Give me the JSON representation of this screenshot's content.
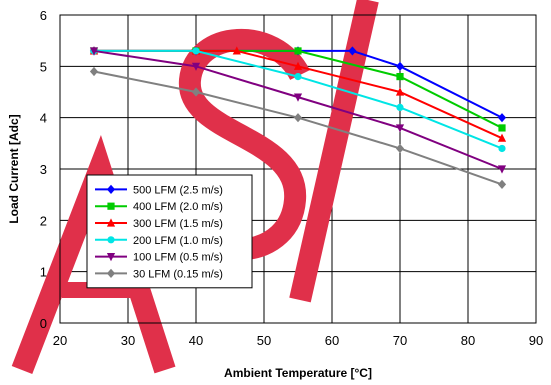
{
  "chart_data": {
    "type": "line",
    "xlabel": "Ambient Temperature [°C]",
    "ylabel": "Load Current  [Adc]",
    "xlim": [
      20,
      90
    ],
    "ylim": [
      0,
      6
    ],
    "xticks": [
      20,
      30,
      40,
      50,
      60,
      70,
      80,
      90
    ],
    "yticks": [
      0,
      1,
      2,
      3,
      4,
      5,
      6
    ],
    "grid": true,
    "legend_position": "bottom-left",
    "watermark": "ASI",
    "watermark_color": "#e0304a",
    "series": [
      {
        "name": "500 LFM (2.5 m/s)",
        "color": "#0000ff",
        "marker": "diamond",
        "points": [
          [
            25,
            5.3
          ],
          [
            40,
            5.3
          ],
          [
            55,
            5.3
          ],
          [
            63,
            5.3
          ],
          [
            70,
            5.0
          ],
          [
            85,
            4.0
          ]
        ]
      },
      {
        "name": "400 LFM (2.0 m/s)",
        "color": "#00cc00",
        "marker": "square",
        "points": [
          [
            25,
            5.3
          ],
          [
            40,
            5.3
          ],
          [
            55,
            5.3
          ],
          [
            70,
            4.8
          ],
          [
            85,
            3.8
          ]
        ]
      },
      {
        "name": "300 LFM (1.5 m/s)",
        "color": "#ff0000",
        "marker": "triangle-up",
        "points": [
          [
            25,
            5.3
          ],
          [
            40,
            5.3
          ],
          [
            46,
            5.3
          ],
          [
            55,
            5.0
          ],
          [
            70,
            4.5
          ],
          [
            85,
            3.6
          ]
        ]
      },
      {
        "name": "200 LFM (1.0 m/s)",
        "color": "#00e5e5",
        "marker": "circle",
        "points": [
          [
            25,
            5.3
          ],
          [
            40,
            5.3
          ],
          [
            55,
            4.8
          ],
          [
            70,
            4.2
          ],
          [
            85,
            3.4
          ]
        ]
      },
      {
        "name": "100 LFM (0.5 m/s)",
        "color": "#800080",
        "marker": "triangle-down",
        "points": [
          [
            25,
            5.3
          ],
          [
            40,
            5.0
          ],
          [
            55,
            4.4
          ],
          [
            70,
            3.8
          ],
          [
            85,
            3.0
          ]
        ]
      },
      {
        "name": "30 LFM (0.15 m/s)",
        "color": "#808080",
        "marker": "diamond",
        "points": [
          [
            25,
            4.9
          ],
          [
            40,
            4.5
          ],
          [
            55,
            4.0
          ],
          [
            70,
            3.4
          ],
          [
            85,
            2.7
          ]
        ]
      }
    ]
  }
}
